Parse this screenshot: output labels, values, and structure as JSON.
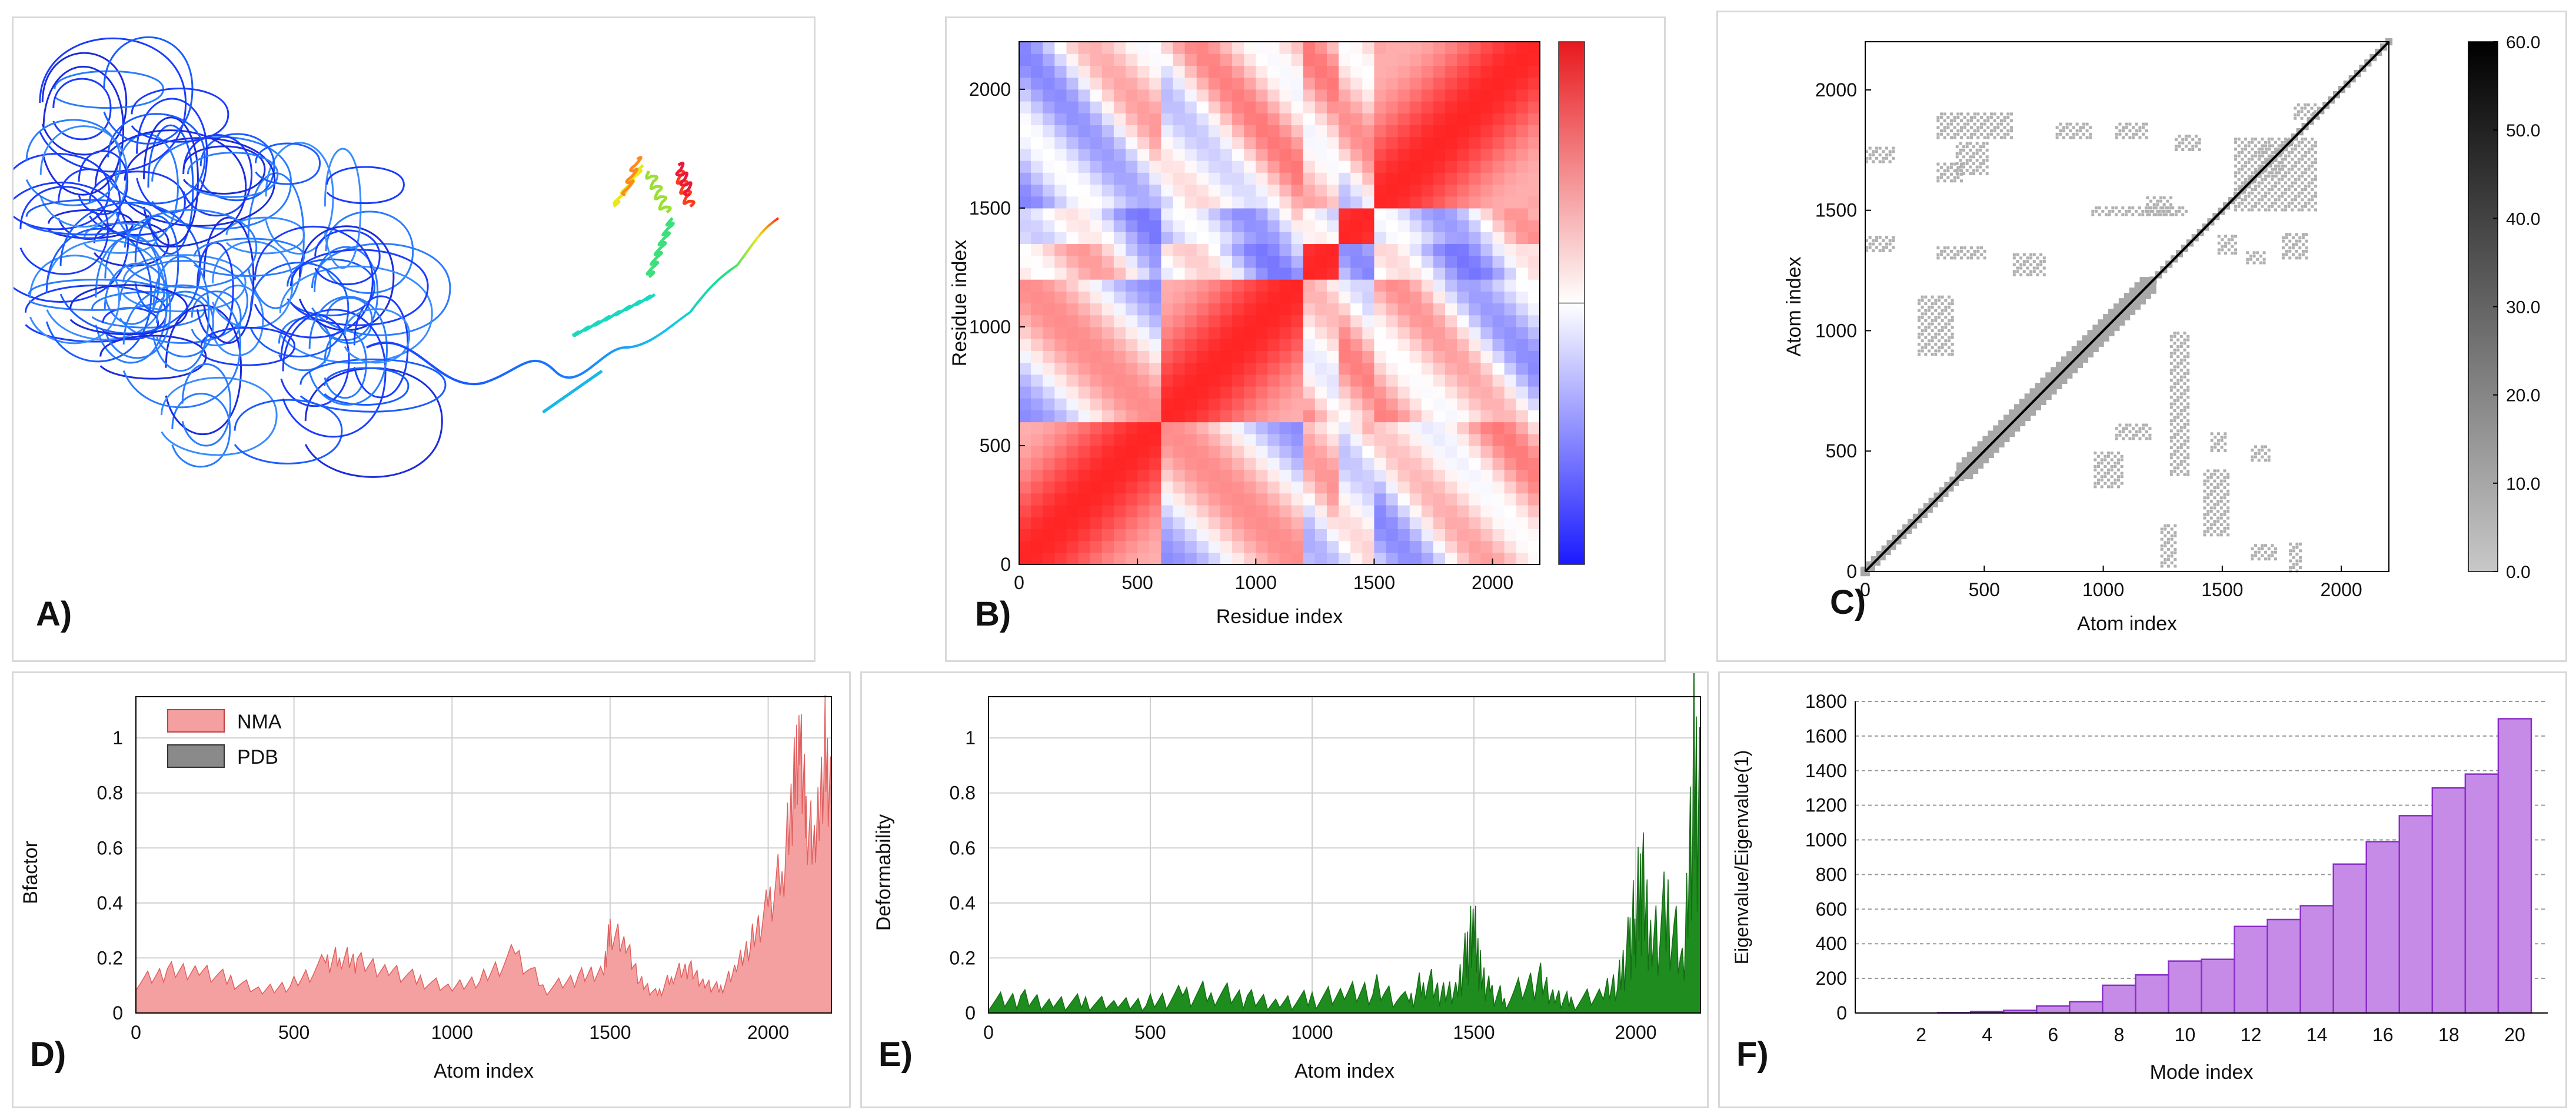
{
  "panels": {
    "a": {
      "label": "A)"
    },
    "b": {
      "label": "B)"
    },
    "c": {
      "label": "C)"
    },
    "d": {
      "label": "D)"
    },
    "e": {
      "label": "E)"
    },
    "f": {
      "label": "F)"
    }
  },
  "colors": {
    "red": "#e8191e",
    "blue": "#1a1aff",
    "green": "#1e8c1e",
    "pink": "#f4a0a0",
    "purple": "#c58be6",
    "purple_edge": "#8a2fc9"
  },
  "chart_data": [
    {
      "id": "B",
      "type": "heatmap",
      "title": "",
      "xlabel": "Residue index",
      "ylabel": "Residue index",
      "xlim": [
        0,
        2200
      ],
      "ylim": [
        0,
        2200
      ],
      "xticks": [
        "0",
        "500",
        "1000",
        "1500",
        "2000"
      ],
      "yticks": [
        "0",
        "500",
        "1000",
        "1500",
        "2000"
      ],
      "colormap": "blue-white-red",
      "domain_blocks": [
        [
          0,
          580
        ],
        [
          580,
          1180
        ],
        [
          1180,
          1330
        ],
        [
          1330,
          1480
        ],
        [
          1480,
          2200
        ]
      ]
    },
    {
      "id": "C",
      "type": "heatmap",
      "title": "",
      "xlabel": "Atom index",
      "ylabel": "Atom index",
      "xlim": [
        0,
        2200
      ],
      "ylim": [
        0,
        2200
      ],
      "xticks": [
        "0",
        "500",
        "1000",
        "1500",
        "2000"
      ],
      "yticks": [
        "0",
        "500",
        "1000",
        "1500",
        "2000"
      ],
      "colorbar_ticks": [
        "0.0",
        "10.0",
        "20.0",
        "30.0",
        "40.0",
        "50.0",
        "60.0"
      ],
      "colorbar_range": [
        0,
        60
      ]
    },
    {
      "id": "D",
      "type": "area",
      "xlabel": "Atom index",
      "ylabel": "Bfactor",
      "xlim": [
        0,
        2200
      ],
      "ylim": [
        0,
        1.15
      ],
      "xticks": [
        "0",
        "500",
        "1000",
        "1500",
        "2000"
      ],
      "yticks": [
        "0",
        "0.2",
        "0.4",
        "0.6",
        "0.8",
        "1"
      ],
      "legend": [
        "NMA",
        "PDB"
      ],
      "grid": true,
      "series": [
        {
          "name": "NMA",
          "x": [
            0,
            100,
            200,
            300,
            400,
            500,
            600,
            650,
            700,
            800,
            900,
            1000,
            1100,
            1200,
            1300,
            1400,
            1480,
            1500,
            1550,
            1600,
            1650,
            1700,
            1750,
            1800,
            1850,
            1900,
            1950,
            2000,
            2050,
            2080,
            2100,
            2120,
            2150,
            2180,
            2200
          ],
          "values": [
            0.1,
            0.14,
            0.15,
            0.11,
            0.07,
            0.1,
            0.17,
            0.19,
            0.17,
            0.15,
            0.11,
            0.08,
            0.12,
            0.2,
            0.08,
            0.12,
            0.15,
            0.28,
            0.22,
            0.1,
            0.06,
            0.13,
            0.15,
            0.1,
            0.08,
            0.15,
            0.25,
            0.36,
            0.5,
            0.75,
            0.98,
            0.65,
            0.55,
            0.9,
            0.7
          ]
        }
      ]
    },
    {
      "id": "E",
      "type": "area",
      "xlabel": "Atom index",
      "ylabel": "Deformability",
      "xlim": [
        0,
        2200
      ],
      "ylim": [
        0,
        1.15
      ],
      "xticks": [
        "0",
        "500",
        "1000",
        "1500",
        "2000"
      ],
      "yticks": [
        "0",
        "0.2",
        "0.4",
        "0.6",
        "0.8",
        "1"
      ],
      "grid": true,
      "series": [
        {
          "name": "Deformability",
          "x": [
            0,
            100,
            200,
            300,
            400,
            500,
            600,
            700,
            800,
            900,
            1000,
            1100,
            1200,
            1300,
            1350,
            1400,
            1450,
            1480,
            1500,
            1520,
            1550,
            1600,
            1700,
            1750,
            1800,
            1900,
            1950,
            1980,
            2000,
            2020,
            2050,
            2100,
            2150,
            2180,
            2200
          ],
          "values": [
            0.03,
            0.04,
            0.03,
            0.03,
            0.02,
            0.03,
            0.05,
            0.06,
            0.04,
            0.03,
            0.04,
            0.05,
            0.07,
            0.03,
            0.1,
            0.05,
            0.08,
            0.18,
            0.24,
            0.12,
            0.06,
            0.04,
            0.1,
            0.05,
            0.03,
            0.05,
            0.1,
            0.2,
            0.3,
            0.38,
            0.22,
            0.3,
            0.12,
            0.75,
            0.55
          ]
        }
      ]
    },
    {
      "id": "F",
      "type": "bar",
      "xlabel": "Mode index",
      "ylabel": "Eigenvalue/Eigenvalue(1)",
      "ylim": [
        0,
        1800
      ],
      "xticks": [
        "2",
        "4",
        "6",
        "8",
        "10",
        "12",
        "14",
        "16",
        "18",
        "20"
      ],
      "yticks": [
        "0",
        "200",
        "400",
        "600",
        "800",
        "1000",
        "1200",
        "1400",
        "1600",
        "1800"
      ],
      "categories": [
        1,
        2,
        3,
        4,
        5,
        6,
        7,
        8,
        9,
        10,
        11,
        12,
        13,
        14,
        15,
        16,
        17,
        18,
        19,
        20
      ],
      "values": [
        0,
        0,
        2,
        8,
        15,
        40,
        65,
        160,
        220,
        300,
        310,
        500,
        540,
        620,
        860,
        990,
        1140,
        1300,
        1380,
        1700
      ]
    }
  ]
}
